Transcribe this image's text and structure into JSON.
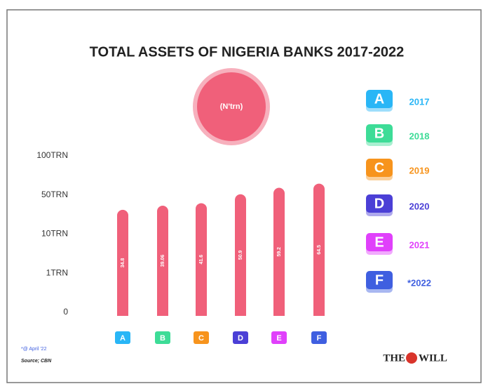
{
  "chart_data": {
    "type": "bar",
    "title": "TOTAL ASSETS OF NIGERIA BANKS 2017-2022",
    "subtitle": "(N'trn)",
    "categories": [
      "A",
      "B",
      "C",
      "D",
      "E",
      "F"
    ],
    "category_colors": [
      "#29b6f6",
      "#3ddc97",
      "#f7941d",
      "#4b3fd6",
      "#e040fb",
      "#3f5fe0"
    ],
    "legend_labels": [
      "2017",
      "2018",
      "2019",
      "2020",
      "2021",
      "*2022"
    ],
    "values": [
      34.8,
      39.06,
      41.6,
      50.9,
      59.2,
      64.5
    ],
    "color": "#f0607a",
    "ylim": [
      0,
      100
    ],
    "yticks": [
      0,
      {
        "value": 1,
        "label": "1TRN"
      },
      {
        "value": 10,
        "label": "10TRN"
      },
      {
        "value": 50,
        "label": "50TRN"
      },
      {
        "value": 100,
        "label": "100TRN"
      }
    ],
    "notes": [
      "*@ April '22",
      "Source; CBN"
    ],
    "brand": [
      "THE",
      "WILL"
    ]
  }
}
